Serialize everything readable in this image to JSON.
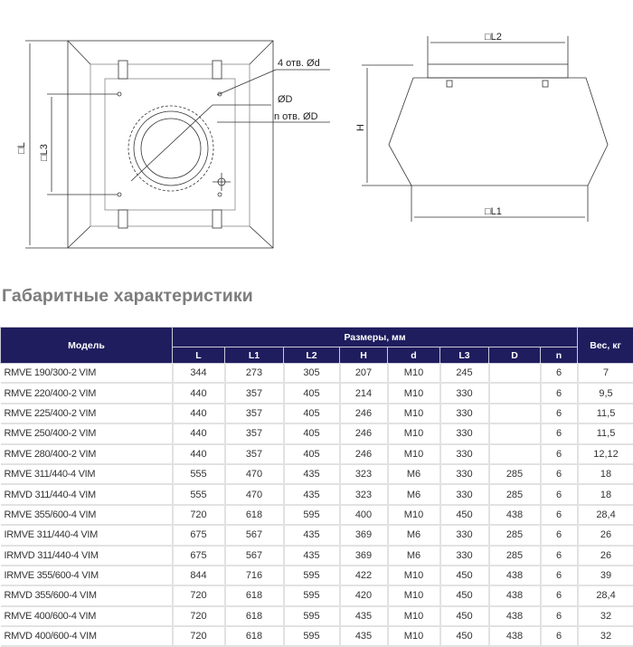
{
  "drawing_labels": {
    "L": "□L",
    "L3": "□L3",
    "holes_d": "4 отв. Ød",
    "D": "ØD",
    "holes_n_D": "n отв. ØD",
    "L2": "□L2",
    "H": "H",
    "L1": "□L1"
  },
  "section_title": "Габаритные характеристики",
  "table": {
    "header_model": "Модель",
    "header_group": "Размеры, мм",
    "header_weight": "Вес, кг",
    "columns": [
      "L",
      "L1",
      "L2",
      "H",
      "d",
      "L3",
      "D",
      "n"
    ],
    "rows": [
      [
        "RMVE 190/300-2 VIM",
        "344",
        "273",
        "305",
        "207",
        "M10",
        "245",
        "",
        "6",
        "7"
      ],
      [
        "RMVE 220/400-2 VIM",
        "440",
        "357",
        "405",
        "214",
        "M10",
        "330",
        "",
        "6",
        "9,5"
      ],
      [
        "RMVE 225/400-2 VIM",
        "440",
        "357",
        "405",
        "246",
        "M10",
        "330",
        "",
        "6",
        "11,5"
      ],
      [
        "RMVE 250/400-2 VIM",
        "440",
        "357",
        "405",
        "246",
        "M10",
        "330",
        "",
        "6",
        "11,5"
      ],
      [
        "RMVE 280/400-2 VIM",
        "440",
        "357",
        "405",
        "246",
        "M10",
        "330",
        "",
        "6",
        "12,12"
      ],
      [
        "RMVE 311/440-4 VIM",
        "555",
        "470",
        "435",
        "323",
        "M6",
        "330",
        "285",
        "6",
        "18"
      ],
      [
        "RMVD 311/440-4 VIM",
        "555",
        "470",
        "435",
        "323",
        "M6",
        "330",
        "285",
        "6",
        "18"
      ],
      [
        "RMVE 355/600-4 VIM",
        "720",
        "618",
        "595",
        "400",
        "M10",
        "450",
        "438",
        "6",
        "28,4"
      ],
      [
        "IRMVE 311/440-4 VIM",
        "675",
        "567",
        "435",
        "369",
        "M6",
        "330",
        "285",
        "6",
        "26"
      ],
      [
        "IRMVD 311/440-4 VIM",
        "675",
        "567",
        "435",
        "369",
        "M6",
        "330",
        "285",
        "6",
        "26"
      ],
      [
        "IRMVE 355/600-4 VIM",
        "844",
        "716",
        "595",
        "422",
        "M10",
        "450",
        "438",
        "6",
        "39"
      ],
      [
        "RMVD 355/600-4 VIM",
        "720",
        "618",
        "595",
        "420",
        "M10",
        "450",
        "438",
        "6",
        "28,4"
      ],
      [
        "RMVE 400/600-4 VIM",
        "720",
        "618",
        "595",
        "435",
        "M10",
        "450",
        "438",
        "6",
        "32"
      ],
      [
        "RMVD 400/600-4 VIM",
        "720",
        "618",
        "595",
        "435",
        "M10",
        "450",
        "438",
        "6",
        "32"
      ]
    ]
  },
  "colors": {
    "header_bg": "#1f1d5e",
    "title": "#7d7d7d",
    "grid": "#e2e2e2"
  }
}
